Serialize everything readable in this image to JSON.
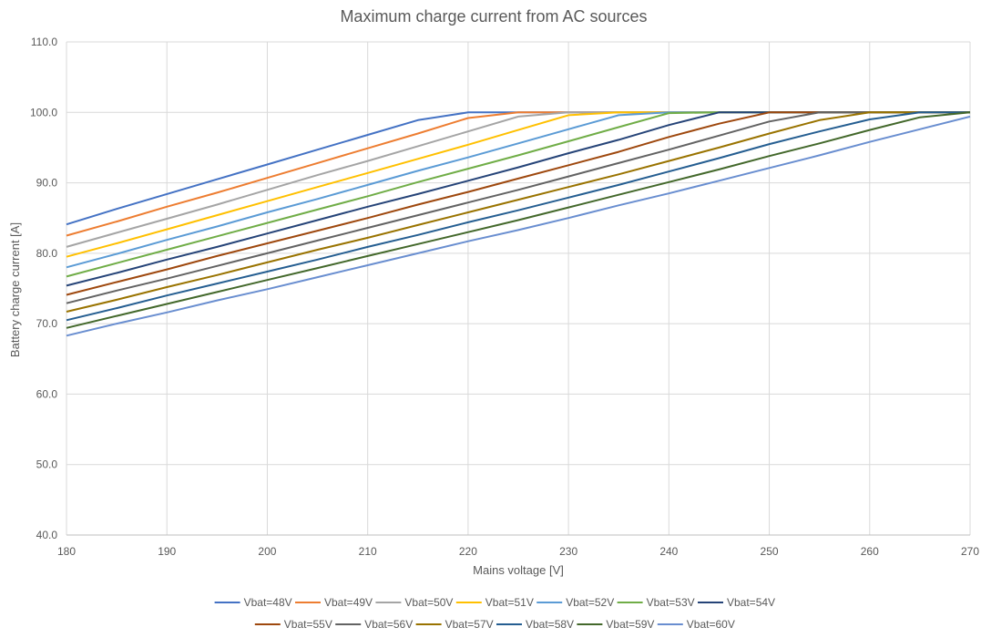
{
  "chart_data": {
    "type": "line",
    "title": "Maximum charge current from AC sources",
    "xlabel": "Mains voltage [V]",
    "ylabel": "Battery charge current [A]",
    "xlim": [
      180,
      270
    ],
    "ylim": [
      40,
      110
    ],
    "x_ticks": [
      "180",
      "190",
      "200",
      "210",
      "220",
      "230",
      "240",
      "250",
      "260",
      "270"
    ],
    "y_ticks": [
      "40.0",
      "50.0",
      "60.0",
      "70.0",
      "80.0",
      "90.0",
      "100.0",
      "110.0"
    ],
    "grid": true,
    "legend_position": "bottom",
    "x": [
      180,
      185,
      190,
      195,
      200,
      205,
      210,
      215,
      220,
      225,
      230,
      235,
      240,
      245,
      250,
      255,
      260,
      265,
      270
    ],
    "series": [
      {
        "name": "Vbat=48V",
        "color": "#4472C4",
        "values": [
          84.1,
          86.3,
          88.4,
          90.5,
          92.6,
          94.7,
          96.8,
          98.9,
          100,
          100,
          100,
          100,
          100,
          100,
          100,
          100,
          100,
          100,
          100
        ]
      },
      {
        "name": "Vbat=49V",
        "color": "#ED7D31",
        "values": [
          82.5,
          84.5,
          86.6,
          88.6,
          90.7,
          92.8,
          94.9,
          97.0,
          99.2,
          100,
          100,
          100,
          100,
          100,
          100,
          100,
          100,
          100,
          100
        ]
      },
      {
        "name": "Vbat=50V",
        "color": "#A5A5A5",
        "values": [
          80.9,
          82.9,
          84.9,
          86.9,
          89.0,
          91.1,
          93.1,
          95.2,
          97.3,
          99.4,
          100,
          100,
          100,
          100,
          100,
          100,
          100,
          100,
          100
        ]
      },
      {
        "name": "Vbat=51V",
        "color": "#FFC000",
        "values": [
          79.5,
          81.4,
          83.4,
          85.4,
          87.4,
          89.4,
          91.4,
          93.4,
          95.4,
          97.5,
          99.6,
          100,
          100,
          100,
          100,
          100,
          100,
          100,
          100
        ]
      },
      {
        "name": "Vbat=52V",
        "color": "#5B9BD5",
        "values": [
          78.0,
          79.9,
          81.9,
          83.8,
          85.8,
          87.7,
          89.7,
          91.7,
          93.6,
          95.6,
          97.6,
          99.6,
          100,
          100,
          100,
          100,
          100,
          100,
          100
        ]
      },
      {
        "name": "Vbat=53V",
        "color": "#70AD47",
        "values": [
          76.7,
          78.6,
          80.5,
          82.4,
          84.3,
          86.2,
          88.1,
          90.1,
          92.0,
          93.9,
          95.9,
          97.9,
          99.9,
          100,
          100,
          100,
          100,
          100,
          100
        ]
      },
      {
        "name": "Vbat=54V",
        "color": "#264478",
        "values": [
          75.4,
          77.2,
          79.1,
          80.9,
          82.8,
          84.7,
          86.6,
          88.4,
          90.3,
          92.2,
          94.2,
          96.1,
          98.2,
          100,
          100,
          100,
          100,
          100,
          100
        ]
      },
      {
        "name": "Vbat=55V",
        "color": "#9E480E",
        "values": [
          74.1,
          75.9,
          77.7,
          79.6,
          81.4,
          83.2,
          85.0,
          86.9,
          88.7,
          90.6,
          92.5,
          94.4,
          96.5,
          98.4,
          100,
          100,
          100,
          100,
          100
        ]
      },
      {
        "name": "Vbat=56V",
        "color": "#636363",
        "values": [
          72.9,
          74.7,
          76.4,
          78.2,
          80.0,
          81.8,
          83.6,
          85.4,
          87.2,
          89.0,
          90.9,
          92.8,
          94.7,
          96.7,
          98.7,
          100,
          100,
          100,
          100
        ]
      },
      {
        "name": "Vbat=57V",
        "color": "#997300",
        "values": [
          71.7,
          73.4,
          75.2,
          76.9,
          78.7,
          80.5,
          82.2,
          84.0,
          85.8,
          87.6,
          89.4,
          91.2,
          93.1,
          95.0,
          97.0,
          98.9,
          100,
          100,
          100
        ]
      },
      {
        "name": "Vbat=58V",
        "color": "#255E91",
        "values": [
          70.5,
          72.2,
          74.0,
          75.7,
          77.4,
          79.1,
          80.9,
          82.6,
          84.4,
          86.1,
          87.9,
          89.7,
          91.6,
          93.5,
          95.5,
          97.3,
          99.0,
          100,
          100
        ]
      },
      {
        "name": "Vbat=59V",
        "color": "#43682B",
        "values": [
          69.4,
          71.1,
          72.8,
          74.5,
          76.2,
          77.9,
          79.6,
          81.3,
          83.0,
          84.7,
          86.5,
          88.3,
          90.1,
          91.9,
          93.8,
          95.6,
          97.5,
          99.3,
          100
        ]
      },
      {
        "name": "Vbat=60V",
        "color": "#698ED0",
        "values": [
          68.3,
          70.0,
          71.6,
          73.3,
          74.9,
          76.6,
          78.3,
          80.0,
          81.7,
          83.3,
          85.0,
          86.8,
          88.5,
          90.3,
          92.1,
          93.9,
          95.8,
          97.6,
          99.4
        ]
      }
    ]
  }
}
